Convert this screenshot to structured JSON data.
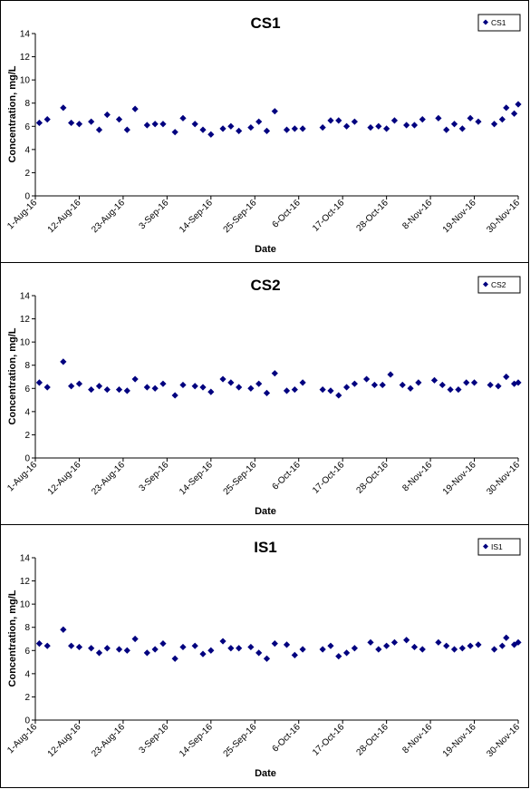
{
  "charts": [
    {
      "title": "CS1",
      "legend": "CS1",
      "chart_data": {
        "type": "scatter",
        "title": "CS1",
        "xlabel": "Date",
        "ylabel": "Concentration, mg/L",
        "ylim": [
          0,
          14
        ],
        "yticks": [
          0,
          2,
          4,
          6,
          8,
          10,
          12,
          14
        ],
        "xlim": [
          "2016-08-01",
          "2016-11-30"
        ],
        "xticks": [
          "1-Aug-16",
          "12-Aug-16",
          "23-Aug-16",
          "3-Sep-16",
          "14-Sep-16",
          "25-Sep-16",
          "6-Oct-16",
          "17-Oct-16",
          "28-Oct-16",
          "8-Nov-16",
          "19-Nov-16",
          "30-Nov-16"
        ],
        "legend_position": "top-right",
        "grid": false,
        "marker_color": "#00007F",
        "series": [
          {
            "name": "CS1",
            "points": [
              [
                "2016-08-02",
                6.3
              ],
              [
                "2016-08-04",
                6.6
              ],
              [
                "2016-08-08",
                7.6
              ],
              [
                "2016-08-10",
                6.3
              ],
              [
                "2016-08-12",
                6.2
              ],
              [
                "2016-08-15",
                6.4
              ],
              [
                "2016-08-17",
                5.7
              ],
              [
                "2016-08-19",
                7.0
              ],
              [
                "2016-08-22",
                6.6
              ],
              [
                "2016-08-24",
                5.7
              ],
              [
                "2016-08-26",
                7.5
              ],
              [
                "2016-08-29",
                6.1
              ],
              [
                "2016-08-31",
                6.2
              ],
              [
                "2016-09-02",
                6.2
              ],
              [
                "2016-09-05",
                5.5
              ],
              [
                "2016-09-07",
                6.7
              ],
              [
                "2016-09-10",
                6.2
              ],
              [
                "2016-09-12",
                5.7
              ],
              [
                "2016-09-14",
                5.3
              ],
              [
                "2016-09-17",
                5.8
              ],
              [
                "2016-09-19",
                6.0
              ],
              [
                "2016-09-21",
                5.6
              ],
              [
                "2016-09-24",
                5.9
              ],
              [
                "2016-09-26",
                6.4
              ],
              [
                "2016-09-28",
                5.6
              ],
              [
                "2016-09-30",
                7.3
              ],
              [
                "2016-10-03",
                5.7
              ],
              [
                "2016-10-05",
                5.8
              ],
              [
                "2016-10-07",
                5.8
              ],
              [
                "2016-10-12",
                5.9
              ],
              [
                "2016-10-14",
                6.5
              ],
              [
                "2016-10-16",
                6.5
              ],
              [
                "2016-10-18",
                6.0
              ],
              [
                "2016-10-20",
                6.4
              ],
              [
                "2016-10-24",
                5.9
              ],
              [
                "2016-10-26",
                6.0
              ],
              [
                "2016-10-28",
                5.8
              ],
              [
                "2016-10-30",
                6.5
              ],
              [
                "2016-11-02",
                6.1
              ],
              [
                "2016-11-04",
                6.1
              ],
              [
                "2016-11-06",
                6.6
              ],
              [
                "2016-11-10",
                6.7
              ],
              [
                "2016-11-12",
                5.7
              ],
              [
                "2016-11-14",
                6.2
              ],
              [
                "2016-11-16",
                5.8
              ],
              [
                "2016-11-18",
                6.7
              ],
              [
                "2016-11-20",
                6.4
              ],
              [
                "2016-11-24",
                6.2
              ],
              [
                "2016-11-26",
                6.6
              ],
              [
                "2016-11-27",
                7.6
              ],
              [
                "2016-11-29",
                7.1
              ],
              [
                "2016-11-30",
                7.9
              ]
            ]
          }
        ]
      }
    },
    {
      "title": "CS2",
      "legend": "CS2",
      "chart_data": {
        "type": "scatter",
        "title": "CS2",
        "xlabel": "Date",
        "ylabel": "Concentration, mg/L",
        "ylim": [
          0,
          14
        ],
        "yticks": [
          0,
          2,
          4,
          6,
          8,
          10,
          12,
          14
        ],
        "xlim": [
          "2016-08-01",
          "2016-11-30"
        ],
        "xticks": [
          "1-Aug-16",
          "12-Aug-16",
          "23-Aug-16",
          "3-Sep-16",
          "14-Sep-16",
          "25-Sep-16",
          "6-Oct-16",
          "17-Oct-16",
          "28-Oct-16",
          "8-Nov-16",
          "19-Nov-16",
          "30-Nov-16"
        ],
        "legend_position": "top-right",
        "grid": false,
        "marker_color": "#00007F",
        "series": [
          {
            "name": "CS2",
            "points": [
              [
                "2016-08-02",
                6.5
              ],
              [
                "2016-08-04",
                6.1
              ],
              [
                "2016-08-08",
                8.3
              ],
              [
                "2016-08-10",
                6.2
              ],
              [
                "2016-08-12",
                6.4
              ],
              [
                "2016-08-15",
                5.9
              ],
              [
                "2016-08-17",
                6.2
              ],
              [
                "2016-08-19",
                5.9
              ],
              [
                "2016-08-22",
                5.9
              ],
              [
                "2016-08-24",
                5.8
              ],
              [
                "2016-08-26",
                6.8
              ],
              [
                "2016-08-29",
                6.1
              ],
              [
                "2016-08-31",
                6.0
              ],
              [
                "2016-09-02",
                6.4
              ],
              [
                "2016-09-05",
                5.4
              ],
              [
                "2016-09-07",
                6.3
              ],
              [
                "2016-09-10",
                6.2
              ],
              [
                "2016-09-12",
                6.1
              ],
              [
                "2016-09-14",
                5.7
              ],
              [
                "2016-09-17",
                6.8
              ],
              [
                "2016-09-19",
                6.5
              ],
              [
                "2016-09-21",
                6.1
              ],
              [
                "2016-09-24",
                6.0
              ],
              [
                "2016-09-26",
                6.4
              ],
              [
                "2016-09-28",
                5.6
              ],
              [
                "2016-09-30",
                7.3
              ],
              [
                "2016-10-03",
                5.8
              ],
              [
                "2016-10-05",
                5.9
              ],
              [
                "2016-10-07",
                6.5
              ],
              [
                "2016-10-12",
                5.9
              ],
              [
                "2016-10-14",
                5.8
              ],
              [
                "2016-10-16",
                5.4
              ],
              [
                "2016-10-18",
                6.1
              ],
              [
                "2016-10-20",
                6.4
              ],
              [
                "2016-10-23",
                6.8
              ],
              [
                "2016-10-25",
                6.3
              ],
              [
                "2016-10-27",
                6.3
              ],
              [
                "2016-10-29",
                7.2
              ],
              [
                "2016-11-01",
                6.3
              ],
              [
                "2016-11-03",
                6.0
              ],
              [
                "2016-11-05",
                6.5
              ],
              [
                "2016-11-09",
                6.7
              ],
              [
                "2016-11-11",
                6.3
              ],
              [
                "2016-11-13",
                5.9
              ],
              [
                "2016-11-15",
                5.9
              ],
              [
                "2016-11-17",
                6.5
              ],
              [
                "2016-11-19",
                6.5
              ],
              [
                "2016-11-23",
                6.3
              ],
              [
                "2016-11-25",
                6.2
              ],
              [
                "2016-11-27",
                7.0
              ],
              [
                "2016-11-29",
                6.4
              ],
              [
                "2016-11-30",
                6.5
              ]
            ]
          }
        ]
      }
    },
    {
      "title": "IS1",
      "legend": "IS1",
      "chart_data": {
        "type": "scatter",
        "title": "IS1",
        "xlabel": "Date",
        "ylabel": "Concentration, mg/L",
        "ylim": [
          0,
          14
        ],
        "yticks": [
          0,
          2,
          4,
          6,
          8,
          10,
          12,
          14
        ],
        "xlim": [
          "2016-08-01",
          "2016-11-30"
        ],
        "xticks": [
          "1-Aug-16",
          "12-Aug-16",
          "23-Aug-16",
          "3-Sep-16",
          "14-Sep-16",
          "25-Sep-16",
          "6-Oct-16",
          "17-Oct-16",
          "28-Oct-16",
          "8-Nov-16",
          "19-Nov-16",
          "30-Nov-16"
        ],
        "legend_position": "top-right",
        "grid": false,
        "marker_color": "#00007F",
        "series": [
          {
            "name": "IS1",
            "points": [
              [
                "2016-08-02",
                6.6
              ],
              [
                "2016-08-04",
                6.4
              ],
              [
                "2016-08-08",
                7.8
              ],
              [
                "2016-08-10",
                6.4
              ],
              [
                "2016-08-12",
                6.3
              ],
              [
                "2016-08-15",
                6.2
              ],
              [
                "2016-08-17",
                5.8
              ],
              [
                "2016-08-19",
                6.2
              ],
              [
                "2016-08-22",
                6.1
              ],
              [
                "2016-08-24",
                6.0
              ],
              [
                "2016-08-26",
                7.0
              ],
              [
                "2016-08-29",
                5.8
              ],
              [
                "2016-08-31",
                6.1
              ],
              [
                "2016-09-02",
                6.6
              ],
              [
                "2016-09-05",
                5.3
              ],
              [
                "2016-09-07",
                6.3
              ],
              [
                "2016-09-10",
                6.4
              ],
              [
                "2016-09-12",
                5.7
              ],
              [
                "2016-09-14",
                6.0
              ],
              [
                "2016-09-17",
                6.8
              ],
              [
                "2016-09-19",
                6.2
              ],
              [
                "2016-09-21",
                6.2
              ],
              [
                "2016-09-24",
                6.3
              ],
              [
                "2016-09-26",
                5.8
              ],
              [
                "2016-09-28",
                5.3
              ],
              [
                "2016-09-30",
                6.6
              ],
              [
                "2016-10-03",
                6.5
              ],
              [
                "2016-10-05",
                5.6
              ],
              [
                "2016-10-07",
                6.1
              ],
              [
                "2016-10-12",
                6.1
              ],
              [
                "2016-10-14",
                6.4
              ],
              [
                "2016-10-16",
                5.5
              ],
              [
                "2016-10-18",
                5.8
              ],
              [
                "2016-10-20",
                6.2
              ],
              [
                "2016-10-24",
                6.7
              ],
              [
                "2016-10-26",
                6.1
              ],
              [
                "2016-10-28",
                6.4
              ],
              [
                "2016-10-30",
                6.7
              ],
              [
                "2016-11-02",
                6.9
              ],
              [
                "2016-11-04",
                6.3
              ],
              [
                "2016-11-06",
                6.1
              ],
              [
                "2016-11-10",
                6.7
              ],
              [
                "2016-11-12",
                6.4
              ],
              [
                "2016-11-14",
                6.1
              ],
              [
                "2016-11-16",
                6.2
              ],
              [
                "2016-11-18",
                6.4
              ],
              [
                "2016-11-20",
                6.5
              ],
              [
                "2016-11-24",
                6.1
              ],
              [
                "2016-11-26",
                6.4
              ],
              [
                "2016-11-27",
                7.1
              ],
              [
                "2016-11-29",
                6.5
              ],
              [
                "2016-11-30",
                6.7
              ]
            ]
          }
        ]
      }
    }
  ]
}
